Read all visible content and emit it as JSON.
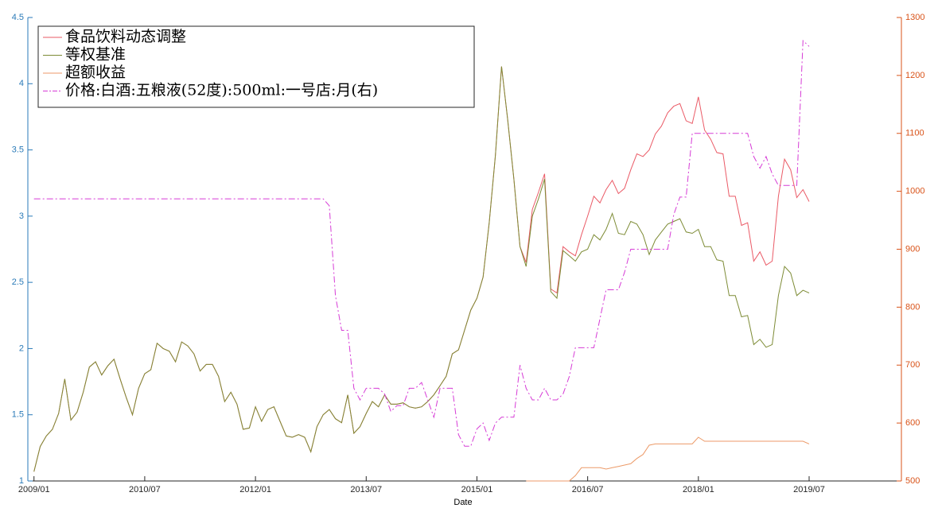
{
  "chart_data": {
    "type": "line",
    "x_label": "Date",
    "x": [
      "2009/01",
      "2009/02",
      "2009/03",
      "2009/04",
      "2009/05",
      "2009/06",
      "2009/07",
      "2009/08",
      "2009/09",
      "2009/10",
      "2009/11",
      "2009/12",
      "2010/01",
      "2010/02",
      "2010/03",
      "2010/04",
      "2010/05",
      "2010/06",
      "2010/07",
      "2010/08",
      "2010/09",
      "2010/10",
      "2010/11",
      "2010/12",
      "2011/01",
      "2011/02",
      "2011/03",
      "2011/04",
      "2011/05",
      "2011/06",
      "2011/07",
      "2011/08",
      "2011/09",
      "2011/10",
      "2011/11",
      "2011/12",
      "2012/01",
      "2012/02",
      "2012/03",
      "2012/04",
      "2012/05",
      "2012/06",
      "2012/07",
      "2012/08",
      "2012/09",
      "2012/10",
      "2012/11",
      "2012/12",
      "2013/01",
      "2013/02",
      "2013/03",
      "2013/04",
      "2013/05",
      "2013/06",
      "2013/07",
      "2013/08",
      "2013/09",
      "2013/10",
      "2013/11",
      "2013/12",
      "2014/01",
      "2014/02",
      "2014/03",
      "2014/04",
      "2014/05",
      "2014/06",
      "2014/07",
      "2014/08",
      "2014/09",
      "2014/10",
      "2014/11",
      "2014/12",
      "2015/01",
      "2015/02",
      "2015/03",
      "2015/04",
      "2015/05",
      "2015/06",
      "2015/07",
      "2015/08",
      "2015/09",
      "2015/10",
      "2015/11",
      "2015/12",
      "2016/01",
      "2016/02",
      "2016/03",
      "2016/04",
      "2016/05",
      "2016/06",
      "2016/07",
      "2016/08",
      "2016/09",
      "2016/10",
      "2016/11",
      "2016/12",
      "2017/01",
      "2017/02",
      "2017/03",
      "2017/04",
      "2017/05",
      "2017/06",
      "2017/07",
      "2017/08",
      "2017/09",
      "2017/10",
      "2017/11",
      "2017/12",
      "2018/01",
      "2018/02",
      "2018/03",
      "2018/04",
      "2018/05",
      "2018/06",
      "2018/07",
      "2018/08",
      "2018/09",
      "2018/10",
      "2018/11",
      "2018/12",
      "2019/01",
      "2019/02",
      "2019/03",
      "2019/04",
      "2019/05",
      "2019/06",
      "2019/07"
    ],
    "xlim": [
      "2008/12",
      "2020/10"
    ],
    "xticks": [
      "2009/01",
      "2010/07",
      "2012/01",
      "2013/07",
      "2015/01",
      "2016/07",
      "2018/01",
      "2019/07"
    ],
    "ylim": [
      1,
      4.5
    ],
    "yticks": [
      1,
      1.5,
      2,
      2.5,
      3,
      3.5,
      4,
      4.5
    ],
    "y2lim": [
      500,
      1300
    ],
    "y2ticks": [
      500,
      600,
      700,
      800,
      900,
      1000,
      1100,
      1200,
      1300
    ],
    "y_color": "#2a7ab8",
    "y2_color": "#d95319",
    "legend": "upper left",
    "series": [
      {
        "name": "食品饮料动态调整",
        "color": "#ea5a66",
        "values": [
          1.07,
          1.26,
          1.34,
          1.39,
          1.51,
          1.77,
          1.46,
          1.52,
          1.67,
          1.86,
          1.9,
          1.8,
          1.87,
          1.92,
          1.77,
          1.63,
          1.5,
          1.7,
          1.81,
          1.84,
          2.04,
          2.0,
          1.98,
          1.9,
          2.05,
          2.02,
          1.96,
          1.83,
          1.88,
          1.88,
          1.79,
          1.6,
          1.67,
          1.58,
          1.39,
          1.4,
          1.56,
          1.45,
          1.54,
          1.56,
          1.45,
          1.34,
          1.33,
          1.35,
          1.33,
          1.22,
          1.41,
          1.5,
          1.54,
          1.47,
          1.44,
          1.65,
          1.36,
          1.41,
          1.51,
          1.6,
          1.56,
          1.65,
          1.58,
          1.58,
          1.59,
          1.56,
          1.55,
          1.56,
          1.6,
          1.65,
          1.72,
          1.79,
          1.96,
          1.99,
          2.14,
          2.29,
          2.38,
          2.54,
          2.95,
          3.46,
          4.13,
          3.73,
          3.28,
          2.77,
          2.65,
          3.05,
          3.18,
          3.32,
          2.45,
          2.42,
          2.77,
          2.73,
          2.7,
          2.86,
          3.0,
          3.15,
          3.1,
          3.2,
          3.27,
          3.17,
          3.21,
          3.35,
          3.47,
          3.45,
          3.5,
          3.62,
          3.68,
          3.78,
          3.83,
          3.85,
          3.72,
          3.7,
          3.9,
          3.65,
          3.58,
          3.48,
          3.47,
          3.15,
          3.15,
          2.93,
          2.95,
          2.66,
          2.73,
          2.63,
          2.66,
          3.15,
          3.43,
          3.35,
          3.14,
          3.2,
          3.11
        ]
      },
      {
        "name": "等权基准",
        "color": "#7d8b35",
        "values": [
          1.07,
          1.26,
          1.34,
          1.39,
          1.51,
          1.77,
          1.46,
          1.52,
          1.67,
          1.86,
          1.9,
          1.8,
          1.87,
          1.92,
          1.77,
          1.63,
          1.5,
          1.7,
          1.81,
          1.84,
          2.04,
          2.0,
          1.98,
          1.9,
          2.05,
          2.02,
          1.96,
          1.83,
          1.88,
          1.88,
          1.79,
          1.6,
          1.67,
          1.58,
          1.39,
          1.4,
          1.56,
          1.45,
          1.54,
          1.56,
          1.45,
          1.34,
          1.33,
          1.35,
          1.33,
          1.22,
          1.41,
          1.5,
          1.54,
          1.47,
          1.44,
          1.65,
          1.36,
          1.41,
          1.51,
          1.6,
          1.56,
          1.65,
          1.58,
          1.58,
          1.59,
          1.56,
          1.55,
          1.56,
          1.6,
          1.65,
          1.72,
          1.79,
          1.96,
          1.99,
          2.14,
          2.29,
          2.38,
          2.54,
          2.95,
          3.46,
          4.13,
          3.73,
          3.28,
          2.77,
          2.62,
          3.0,
          3.13,
          3.28,
          2.43,
          2.38,
          2.74,
          2.7,
          2.66,
          2.73,
          2.75,
          2.86,
          2.82,
          2.9,
          3.02,
          2.87,
          2.86,
          2.96,
          2.94,
          2.86,
          2.71,
          2.82,
          2.88,
          2.94,
          2.96,
          2.98,
          2.88,
          2.87,
          2.9,
          2.77,
          2.77,
          2.67,
          2.66,
          2.4,
          2.4,
          2.24,
          2.25,
          2.03,
          2.07,
          2.01,
          2.03,
          2.4,
          2.62,
          2.57,
          2.4,
          2.44,
          2.42
        ]
      },
      {
        "name": "超额收益",
        "color": "#ec9a68",
        "values": [
          null,
          null,
          null,
          null,
          null,
          null,
          null,
          null,
          null,
          null,
          null,
          null,
          null,
          null,
          null,
          null,
          null,
          null,
          null,
          null,
          null,
          null,
          null,
          null,
          null,
          null,
          null,
          null,
          null,
          null,
          null,
          null,
          null,
          null,
          null,
          null,
          null,
          null,
          null,
          null,
          null,
          null,
          null,
          null,
          null,
          null,
          null,
          null,
          null,
          null,
          null,
          null,
          null,
          null,
          null,
          null,
          null,
          null,
          null,
          null,
          null,
          null,
          null,
          null,
          null,
          null,
          null,
          null,
          null,
          null,
          null,
          null,
          null,
          null,
          null,
          null,
          null,
          null,
          null,
          null,
          1.0,
          1.0,
          1.0,
          1.0,
          1.0,
          1.0,
          1.0,
          1.0,
          1.04,
          1.1,
          1.1,
          1.1,
          1.1,
          1.09,
          1.1,
          1.11,
          1.12,
          1.13,
          1.17,
          1.2,
          1.27,
          1.28,
          1.28,
          1.28,
          1.28,
          1.28,
          1.28,
          1.28,
          1.33,
          1.3,
          1.3,
          1.3,
          1.3,
          1.3,
          1.3,
          1.3,
          1.3,
          1.3,
          1.3,
          1.3,
          1.3,
          1.3,
          1.3,
          1.3,
          1.3,
          1.3,
          1.28
        ]
      },
      {
        "name": "价格:白酒:五粮液(52度):500ml:一号店:月(右)",
        "color": "#d63bd6",
        "dash": "dashdot",
        "axis": "y2",
        "values": [
          987,
          987,
          987,
          987,
          987,
          987,
          987,
          987,
          987,
          987,
          987,
          987,
          987,
          987,
          987,
          987,
          987,
          987,
          987,
          987,
          987,
          987,
          987,
          987,
          987,
          987,
          987,
          987,
          987,
          987,
          987,
          987,
          987,
          987,
          987,
          987,
          987,
          987,
          987,
          987,
          987,
          987,
          987,
          987,
          987,
          987,
          987,
          987,
          975,
          820,
          760,
          760,
          660,
          640,
          660,
          660,
          660,
          650,
          620,
          630,
          630,
          660,
          660,
          670,
          640,
          610,
          660,
          660,
          660,
          580,
          560,
          560,
          590,
          600,
          570,
          600,
          610,
          610,
          610,
          700,
          660,
          640,
          640,
          660,
          640,
          640,
          650,
          680,
          730,
          730,
          730,
          730,
          780,
          830,
          830,
          830,
          860,
          900,
          900,
          900,
          900,
          900,
          900,
          900,
          960,
          990,
          990,
          1100,
          1100,
          1100,
          1100,
          1100,
          1100,
          1100,
          1100,
          1100,
          1100,
          1060,
          1040,
          1060,
          1030,
          1010,
          1010,
          1010,
          1010,
          1260,
          1250
        ]
      }
    ]
  }
}
